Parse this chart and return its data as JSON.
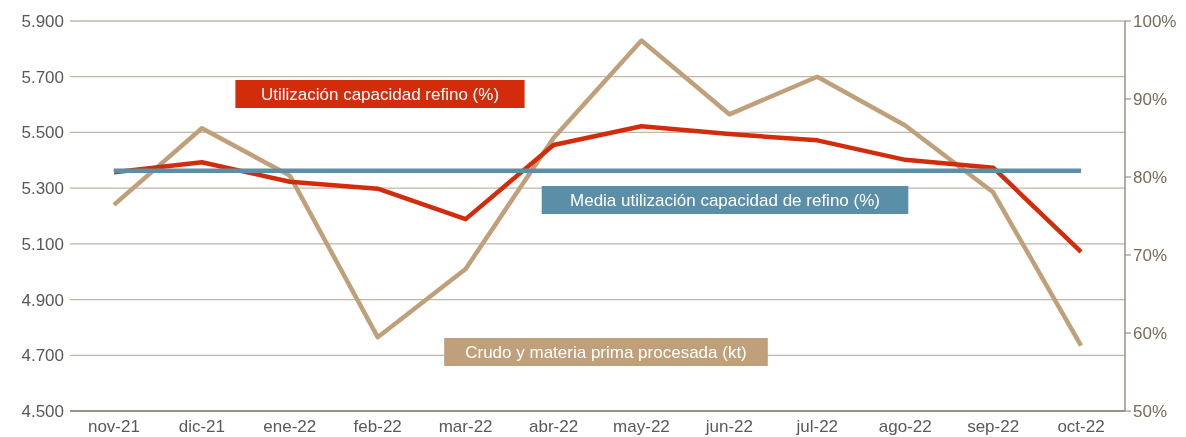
{
  "chart_data": {
    "type": "line",
    "categories": [
      "nov-21",
      "dic-21",
      "ene-22",
      "feb-22",
      "mar-22",
      "abr-22",
      "may-22",
      "jun-22",
      "jul-22",
      "ago-22",
      "sep-22",
      "oct-22"
    ],
    "series": [
      {
        "name": "Crudo y materia prima procesada (kt)",
        "color": "#c0a07a",
        "values": [
          5240,
          5515,
          5345,
          4765,
          5010,
          5480,
          5830,
          5565,
          5700,
          5525,
          5285,
          4735
        ]
      },
      {
        "name": "Utilización capacidad refino (%)",
        "color": "#d22c0a",
        "axis": "y2",
        "values": [
          80.6,
          81.9,
          79.4,
          78.5,
          74.6,
          84.1,
          86.5,
          85.5,
          84.7,
          82.2,
          81.2,
          70.4
        ]
      },
      {
        "name": "Media utilización capacidad de refino (%)",
        "color": "#5b8fa8",
        "axis": "y2",
        "values": [
          80.8,
          80.8,
          80.8,
          80.8,
          80.8,
          80.8,
          80.8,
          80.8,
          80.8,
          80.8,
          80.8,
          80.8
        ]
      }
    ],
    "ylim": [
      4500,
      5900
    ],
    "yticks": [
      {
        "value": 4500,
        "label": "4.500"
      },
      {
        "value": 4700,
        "label": "4.700"
      },
      {
        "value": 4900,
        "label": "4.900"
      },
      {
        "value": 5100,
        "label": "5.100"
      },
      {
        "value": 5300,
        "label": "5.300"
      },
      {
        "value": 5500,
        "label": "5.500"
      },
      {
        "value": 5700,
        "label": "5.700"
      },
      {
        "value": 5900,
        "label": "5.900"
      }
    ],
    "y2lim": [
      50,
      100
    ],
    "y2ticks": [
      {
        "value": 50,
        "label": "50%"
      },
      {
        "value": 60,
        "label": "60%"
      },
      {
        "value": 70,
        "label": "70%"
      },
      {
        "value": 80,
        "label": "80%"
      },
      {
        "value": 90,
        "label": "90%"
      },
      {
        "value": 100,
        "label": "100%"
      }
    ],
    "grid": "y",
    "legend": false,
    "marker": "none",
    "line_style": "solid"
  }
}
